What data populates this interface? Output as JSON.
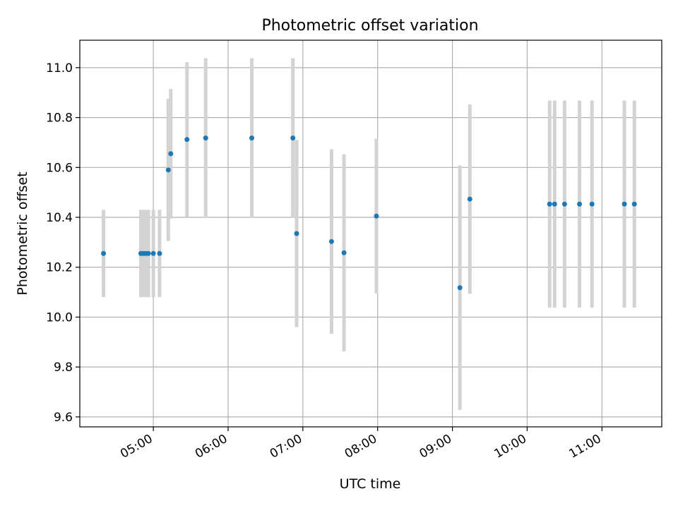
{
  "chart_data": {
    "type": "scatter",
    "title": "Photometric offset variation",
    "xlabel": "UTC time",
    "ylabel": "Photometric offset",
    "x_tick_labels": [
      "05:00",
      "06:00",
      "07:00",
      "08:00",
      "09:00",
      "10:00",
      "11:00"
    ],
    "y_tick_labels": [
      "9.6",
      "9.8",
      "10.0",
      "10.2",
      "10.4",
      "10.6",
      "10.8",
      "11.0"
    ],
    "xlim": [
      "04:01",
      "11:48"
    ],
    "ylim": [
      9.56,
      11.11
    ],
    "grid": true,
    "legend": "none",
    "colors": {
      "point": "#1f77b4",
      "errorbar": "#d3d3d3",
      "grid": "#b0b0b0"
    },
    "points": [
      {
        "x": "04:20",
        "y": 10.255,
        "yerr": 0.175
      },
      {
        "x": "04:50",
        "y": 10.255,
        "yerr": 0.175
      },
      {
        "x": "04:52",
        "y": 10.255,
        "yerr": 0.175
      },
      {
        "x": "04:54",
        "y": 10.255,
        "yerr": 0.175
      },
      {
        "x": "04:56",
        "y": 10.255,
        "yerr": 0.175
      },
      {
        "x": "05:00",
        "y": 10.255,
        "yerr": 0.175
      },
      {
        "x": "05:05",
        "y": 10.255,
        "yerr": 0.175
      },
      {
        "x": "05:12",
        "y": 10.59,
        "yerr": 0.285
      },
      {
        "x": "05:14",
        "y": 10.655,
        "yerr": 0.26
      },
      {
        "x": "05:27",
        "y": 10.712,
        "yerr": 0.31
      },
      {
        "x": "05:42",
        "y": 10.718,
        "yerr": 0.32
      },
      {
        "x": "06:19",
        "y": 10.718,
        "yerr": 0.32
      },
      {
        "x": "06:52",
        "y": 10.718,
        "yerr": 0.32
      },
      {
        "x": "06:55",
        "y": 10.335,
        "yerr": 0.375
      },
      {
        "x": "07:23",
        "y": 10.303,
        "yerr": 0.37
      },
      {
        "x": "07:33",
        "y": 10.258,
        "yerr": 0.395
      },
      {
        "x": "07:59",
        "y": 10.405,
        "yerr": 0.31
      },
      {
        "x": "09:06",
        "y": 10.118,
        "yerr": 0.49
      },
      {
        "x": "09:14",
        "y": 10.473,
        "yerr": 0.38
      },
      {
        "x": "10:18",
        "y": 10.453,
        "yerr": 0.415
      },
      {
        "x": "10:22",
        "y": 10.453,
        "yerr": 0.415
      },
      {
        "x": "10:30",
        "y": 10.453,
        "yerr": 0.415
      },
      {
        "x": "10:42",
        "y": 10.453,
        "yerr": 0.415
      },
      {
        "x": "10:52",
        "y": 10.453,
        "yerr": 0.415
      },
      {
        "x": "11:18",
        "y": 10.453,
        "yerr": 0.415
      },
      {
        "x": "11:26",
        "y": 10.453,
        "yerr": 0.415
      }
    ]
  }
}
